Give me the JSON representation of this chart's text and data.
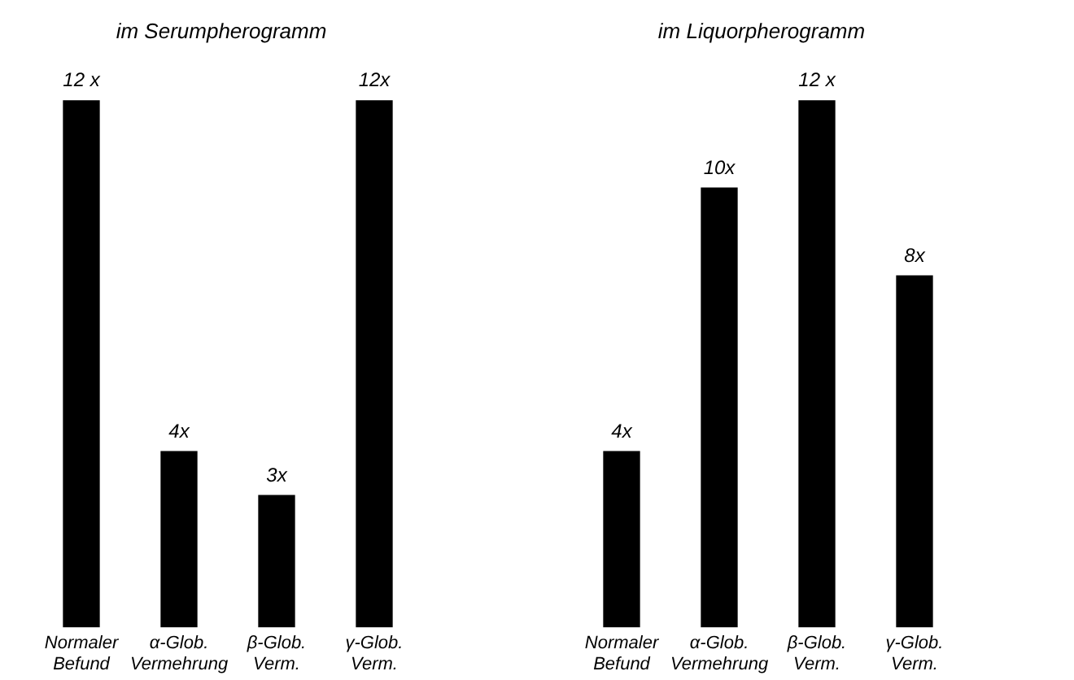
{
  "chart_data": [
    {
      "type": "bar",
      "title": "im Serumpherogramm",
      "categories": [
        "Normaler\nBefund",
        "α-Glob.\nVermehrung",
        "β-Glob.\nVerm.",
        "γ-Glob.\nVerm."
      ],
      "values": [
        12,
        4,
        3,
        12
      ],
      "value_labels": [
        "12 x",
        "4x",
        "3x",
        "12x"
      ],
      "color": "#000000",
      "grid": false,
      "tick_labels": "x"
    },
    {
      "type": "bar",
      "title": "im Liquorpherogramm",
      "categories": [
        "Normaler\nBefund",
        "α-Glob.\nVermehrung",
        "β-Glob.\nVerm.",
        "γ-Glob.\nVerm."
      ],
      "values": [
        4,
        10,
        12,
        8
      ],
      "value_labels": [
        "4x",
        "10x",
        "12 x",
        "8x"
      ],
      "color": "#000000",
      "grid": false,
      "tick_labels": "x"
    }
  ]
}
